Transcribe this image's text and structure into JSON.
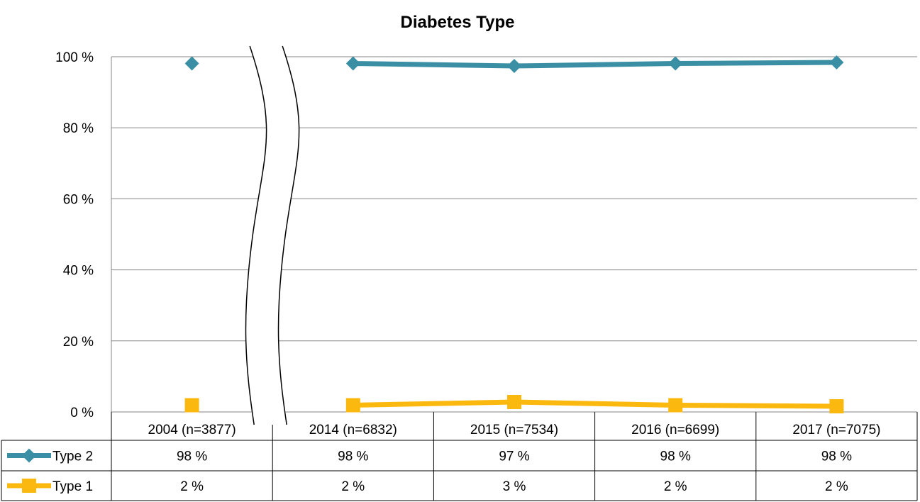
{
  "chart_data": {
    "type": "line",
    "title": "Diabetes Type",
    "xlabel": "",
    "ylabel": "",
    "ylim": [
      0,
      100
    ],
    "y_ticks": [
      "0 %",
      "20 %",
      "40 %",
      "60 %",
      "80 %",
      "100 %"
    ],
    "y_tick_values": [
      0,
      20,
      40,
      60,
      80,
      100
    ],
    "categories": [
      "2004 (n=3877)",
      "2014 (n=6832)",
      "2015 (n=7534)",
      "2016 (n=6699)",
      "2017 (n=7075)"
    ],
    "axis_break_after_category": 0,
    "grid": true,
    "legend_placement": "data-table-left",
    "series": [
      {
        "name": "Type 2",
        "color": "#3A8FA5",
        "marker": "diamond",
        "values": [
          98.1,
          98.1,
          97.4,
          98.1,
          98.4
        ],
        "labels": [
          "98 %",
          "98 %",
          "97 %",
          "98 %",
          "98 %"
        ]
      },
      {
        "name": "Type 1",
        "color": "#FBB80F",
        "marker": "square",
        "values": [
          1.9,
          1.9,
          2.8,
          1.9,
          1.6
        ],
        "labels": [
          "2 %",
          "2 %",
          "3 %",
          "2 %",
          "2 %"
        ]
      }
    ]
  }
}
